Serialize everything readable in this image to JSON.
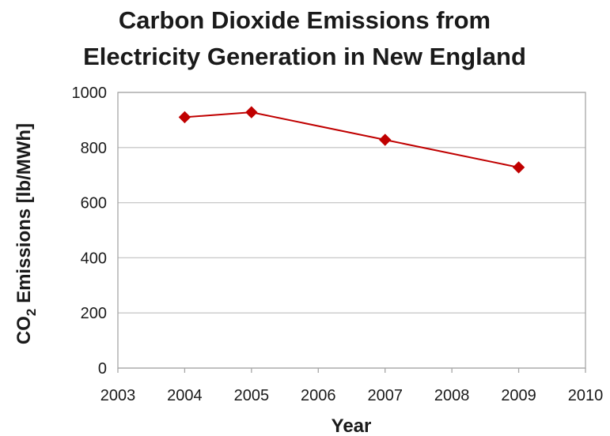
{
  "chart_data": {
    "type": "line",
    "title_line1": "Carbon Dioxide Emissions from",
    "title_line2": "Electricity Generation in New England",
    "xlabel": "Year",
    "ylabel_prefix": "CO",
    "ylabel_subscript": "2",
    "ylabel_suffix": " Emissions [lb/MWh]",
    "xlim": [
      2003,
      2010
    ],
    "ylim": [
      0,
      1000
    ],
    "x_ticks": [
      2003,
      2004,
      2005,
      2006,
      2007,
      2008,
      2009,
      2010
    ],
    "y_ticks": [
      0,
      200,
      400,
      600,
      800,
      1000
    ],
    "grid": "horizontal",
    "series": [
      {
        "x": [
          2004,
          2005,
          2007,
          2009
        ],
        "y": [
          910,
          928,
          828,
          728
        ],
        "color": "#c00000",
        "marker": "diamond"
      }
    ]
  }
}
